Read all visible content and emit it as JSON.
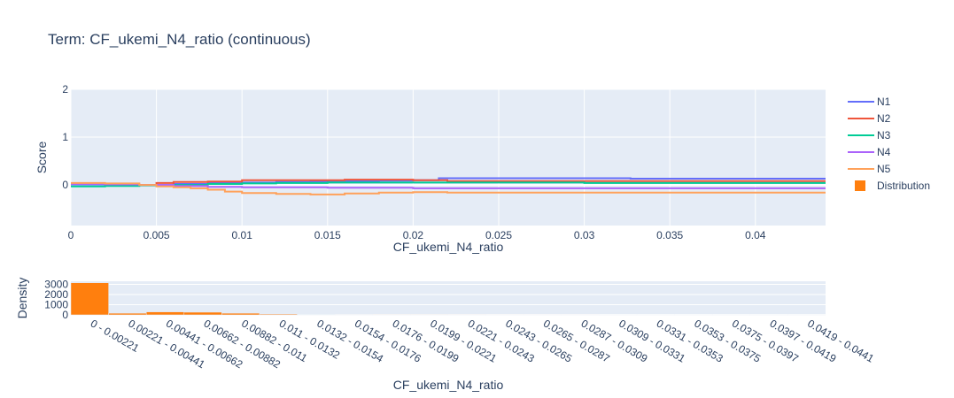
{
  "title": "Term: CF_ukemi_N4_ratio (continuous)",
  "colors": {
    "background": "#ffffff",
    "plot_bg": "#e5ecf6",
    "grid": "#ffffff",
    "text": "#2a3f5f"
  },
  "chart_data": [
    {
      "type": "line",
      "line_shape": "step",
      "xlabel": "CF_ukemi_N4_ratio",
      "ylabel": "Score",
      "xlim": [
        0,
        0.0441
      ],
      "ylim": [
        -0.85,
        2
      ],
      "x_ticks": [
        "0",
        "0.005",
        "0.01",
        "0.015",
        "0.02",
        "0.025",
        "0.03",
        "0.035",
        "0.04"
      ],
      "x_tick_values": [
        0,
        0.005,
        0.01,
        0.015,
        0.02,
        0.025,
        0.03,
        0.035,
        0.04
      ],
      "y_ticks": [
        "0",
        "1",
        "2"
      ],
      "y_tick_values": [
        0,
        1,
        2
      ],
      "grid": true,
      "legend_position": "right",
      "series": [
        {
          "name": "N1",
          "color": "#636efa",
          "x": [
            0,
            0.002,
            0.004,
            0.006,
            0.008,
            0.01,
            0.012,
            0.014,
            0.016,
            0.018,
            0.02,
            0.0215,
            0.0327,
            0.0441
          ],
          "y": [
            -0.02,
            -0.01,
            0.0,
            0.02,
            0.04,
            0.05,
            0.06,
            0.07,
            0.08,
            0.09,
            0.1,
            0.14,
            0.13,
            0.13
          ]
        },
        {
          "name": "N2",
          "color": "#ef553b",
          "x": [
            0,
            0.002,
            0.004,
            0.005,
            0.006,
            0.008,
            0.01,
            0.013,
            0.016,
            0.02,
            0.022,
            0.03,
            0.0441
          ],
          "y": [
            0.02,
            0.01,
            0.0,
            0.04,
            0.06,
            0.07,
            0.1,
            0.1,
            0.11,
            0.1,
            0.08,
            0.08,
            0.08
          ]
        },
        {
          "name": "N3",
          "color": "#00cc96",
          "x": [
            0,
            0.002,
            0.004,
            0.006,
            0.008,
            0.01,
            0.012,
            0.015,
            0.02,
            0.03,
            0.0441
          ],
          "y": [
            -0.03,
            -0.02,
            -0.01,
            0.0,
            0.02,
            0.03,
            0.04,
            0.05,
            0.05,
            0.04,
            0.04
          ]
        },
        {
          "name": "N4",
          "color": "#ab63fa",
          "x": [
            0,
            0.002,
            0.004,
            0.006,
            0.008,
            0.01,
            0.015,
            0.02,
            0.0441
          ],
          "y": [
            0.02,
            0.01,
            0.0,
            -0.02,
            -0.04,
            -0.05,
            -0.06,
            -0.07,
            -0.07
          ]
        },
        {
          "name": "N5",
          "color": "#ffa15a",
          "x": [
            0,
            0.002,
            0.004,
            0.005,
            0.006,
            0.007,
            0.008,
            0.009,
            0.01,
            0.012,
            0.014,
            0.016,
            0.018,
            0.02,
            0.022,
            0.03,
            0.0441
          ],
          "y": [
            0.04,
            0.03,
            0.0,
            -0.03,
            -0.05,
            -0.07,
            -0.1,
            -0.14,
            -0.17,
            -0.19,
            -0.2,
            -0.18,
            -0.16,
            -0.15,
            -0.16,
            -0.16,
            -0.16
          ]
        }
      ],
      "legend_extra": {
        "name": "Distribution",
        "color": "#ff7f0e"
      }
    },
    {
      "type": "bar",
      "xlabel": "CF_ukemi_N4_ratio",
      "ylabel": "Density",
      "ylim": [
        0,
        3300
      ],
      "y_ticks": [
        "0",
        "1000",
        "2000",
        "3000"
      ],
      "y_tick_values": [
        0,
        1000,
        2000,
        3000
      ],
      "color": "#ff7f0e",
      "categories": [
        "0 - 0.00221",
        "0.00221 - 0.00441",
        "0.00441 - 0.00662",
        "0.00662 - 0.00882",
        "0.00882 - 0.011",
        "0.011 - 0.0132",
        "0.0132 - 0.0154",
        "0.0154 - 0.0176",
        "0.0176 - 0.0199",
        "0.0199 - 0.0221",
        "0.0221 - 0.0243",
        "0.0243 - 0.0265",
        "0.0265 - 0.0287",
        "0.0287 - 0.0309",
        "0.0309 - 0.0331",
        "0.0331 - 0.0353",
        "0.0353 - 0.0375",
        "0.0375 - 0.0397",
        "0.0397 - 0.0419",
        "0.0419 - 0.0441"
      ],
      "values": [
        3150,
        160,
        290,
        260,
        160,
        80,
        40,
        20,
        10,
        10,
        5,
        3,
        2,
        2,
        1,
        1,
        1,
        1,
        1,
        1
      ]
    }
  ]
}
